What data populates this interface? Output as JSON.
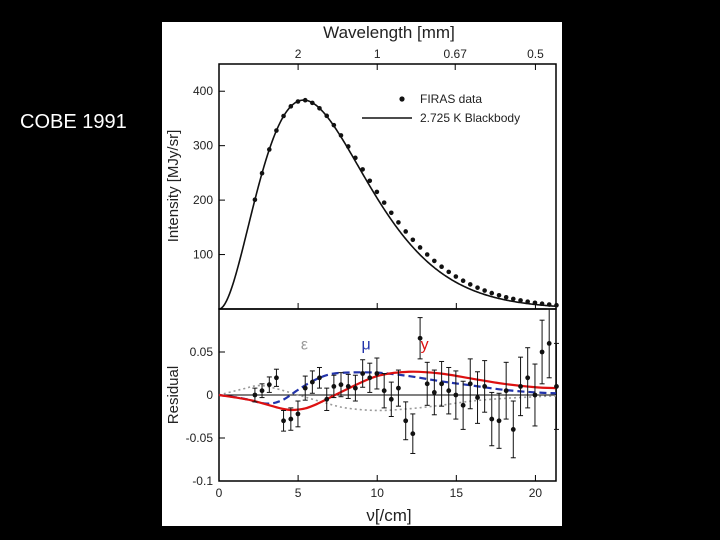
{
  "slide": {
    "caption": "COBE 1991"
  },
  "chart_data": [
    {
      "type": "line",
      "title": "",
      "top_axis_label": "Wavelength [mm]",
      "top_ticks": [
        {
          "label": "2",
          "nu": 5
        },
        {
          "label": "1",
          "nu": 10
        },
        {
          "label": "0.67",
          "nu": 14.93
        },
        {
          "label": "0.5",
          "nu": 20
        }
      ],
      "xlim": [
        0,
        21.3
      ],
      "ylim": [
        0,
        450
      ],
      "ylabel": "Intensity [MJy/sr]",
      "yticks": [
        100,
        200,
        300,
        400
      ],
      "legend": {
        "placement": "top-right",
        "entries": [
          "FIRAS data",
          "2.725 K Blackbody"
        ]
      },
      "series": [
        {
          "name": "2.725 K Blackbody",
          "kind": "curve",
          "temperature_K": 2.725,
          "color": "#111111"
        },
        {
          "name": "FIRAS data",
          "kind": "points",
          "x": [
            2.27,
            2.72,
            3.18,
            3.63,
            4.08,
            4.54,
            4.99,
            5.45,
            5.9,
            6.35,
            6.81,
            7.26,
            7.71,
            8.17,
            8.62,
            9.08,
            9.53,
            9.98,
            10.44,
            10.89,
            11.34,
            11.8,
            12.25,
            12.71,
            13.16,
            13.61,
            14.07,
            14.52,
            14.97,
            15.43,
            15.88,
            16.34,
            16.79,
            17.24,
            17.7,
            18.15,
            18.6,
            19.06,
            19.51,
            19.97,
            20.42,
            20.87,
            21.33
          ],
          "y": [
            200.7,
            249.4,
            293.0,
            327.8,
            354.5,
            372.2,
            381.1,
            383.5,
            378.6,
            368.7,
            354.8,
            337.7,
            318.9,
            298.5,
            277.6,
            256.4,
            235.5,
            215.1,
            195.4,
            176.7,
            159.0,
            142.4,
            127.1,
            113.0,
            100.1,
            88.3,
            77.7,
            68.2,
            59.6,
            52.0,
            45.2,
            39.2,
            33.9,
            29.2,
            25.2,
            21.6,
            18.5,
            15.8,
            13.5,
            11.4,
            9.7,
            8.2,
            7.0
          ]
        }
      ]
    },
    {
      "type": "scatter",
      "xlabel": "ν[/cm]",
      "ylabel": "Residual",
      "xlim": [
        0,
        21.3
      ],
      "ylim": [
        -0.1,
        0.1
      ],
      "xticks": [
        0,
        5,
        10,
        15,
        20
      ],
      "yticks": [
        {
          "value": 0.05,
          "label": "0.05"
        },
        {
          "value": 0,
          "label": "0"
        },
        {
          "value": -0.05,
          "label": "-0.05"
        },
        {
          "value": -0.1,
          "label": "-0.1"
        }
      ],
      "annotations": [
        {
          "text": "ε",
          "nu": 5.4,
          "value": 0.053,
          "color": "#999999"
        },
        {
          "text": "μ",
          "nu": 9.3,
          "value": 0.053,
          "color": "#2233aa"
        },
        {
          "text": "y",
          "nu": 13.0,
          "value": 0.053,
          "color": "#dd1111"
        }
      ],
      "model_curves": [
        {
          "name": "ε",
          "color": "#999999",
          "style": "dotted",
          "x": [
            0,
            1.5,
            2.5,
            3.5,
            5,
            6.5,
            8,
            10,
            12,
            14,
            16,
            18,
            20,
            21.3
          ],
          "y": [
            0.0,
            0.007,
            0.011,
            0.008,
            0.0,
            -0.008,
            -0.015,
            -0.018,
            -0.016,
            -0.012,
            -0.007,
            -0.004,
            -0.002,
            -0.001
          ]
        },
        {
          "name": "μ",
          "color": "#2233aa",
          "style": "dashed",
          "x": [
            0,
            1.5,
            3,
            4,
            5,
            6,
            7,
            8,
            10,
            12,
            14,
            16,
            18,
            20,
            21.3
          ],
          "y": [
            0.0,
            -0.004,
            -0.01,
            -0.006,
            0.006,
            0.017,
            0.024,
            0.026,
            0.026,
            0.022,
            0.016,
            0.011,
            0.006,
            0.003,
            0.002
          ]
        },
        {
          "name": "y",
          "color": "#dd1111",
          "style": "solid",
          "x": [
            0,
            2,
            4,
            5,
            6,
            8,
            10,
            12,
            14,
            16,
            18,
            20,
            21.3
          ],
          "y": [
            0.0,
            -0.006,
            -0.016,
            -0.017,
            -0.012,
            0.006,
            0.022,
            0.027,
            0.025,
            0.019,
            0.013,
            0.009,
            0.008
          ]
        }
      ],
      "points": {
        "name": "FIRAS residuals",
        "x": [
          2.27,
          2.72,
          3.18,
          3.63,
          4.08,
          4.54,
          4.99,
          5.45,
          5.9,
          6.35,
          6.81,
          7.26,
          7.71,
          8.17,
          8.62,
          9.08,
          9.53,
          9.98,
          10.44,
          10.89,
          11.34,
          11.8,
          12.25,
          12.71,
          13.16,
          13.61,
          14.07,
          14.52,
          14.97,
          15.43,
          15.88,
          16.34,
          16.79,
          17.24,
          17.7,
          18.15,
          18.6,
          19.06,
          19.51,
          19.97,
          20.42,
          20.87,
          21.33
        ],
        "y": [
          0.0,
          0.005,
          0.012,
          0.02,
          -0.03,
          -0.028,
          -0.022,
          0.008,
          0.015,
          0.02,
          -0.005,
          0.01,
          0.012,
          0.01,
          0.008,
          0.025,
          0.02,
          0.025,
          0.005,
          -0.005,
          0.008,
          -0.03,
          -0.045,
          0.066,
          0.013,
          0.003,
          0.013,
          0.005,
          0.0,
          -0.012,
          0.013,
          -0.003,
          0.01,
          -0.028,
          -0.03,
          0.005,
          -0.04,
          0.01,
          0.02,
          0.0,
          0.05,
          0.06,
          0.01
        ],
        "err": [
          0.008,
          0.008,
          0.009,
          0.01,
          0.012,
          0.013,
          0.015,
          0.014,
          0.013,
          0.012,
          0.013,
          0.013,
          0.014,
          0.014,
          0.015,
          0.016,
          0.017,
          0.018,
          0.02,
          0.02,
          0.021,
          0.022,
          0.023,
          0.024,
          0.025,
          0.026,
          0.026,
          0.027,
          0.028,
          0.028,
          0.029,
          0.03,
          0.03,
          0.031,
          0.032,
          0.033,
          0.033,
          0.034,
          0.035,
          0.036,
          0.037,
          0.04,
          0.05
        ]
      }
    }
  ]
}
